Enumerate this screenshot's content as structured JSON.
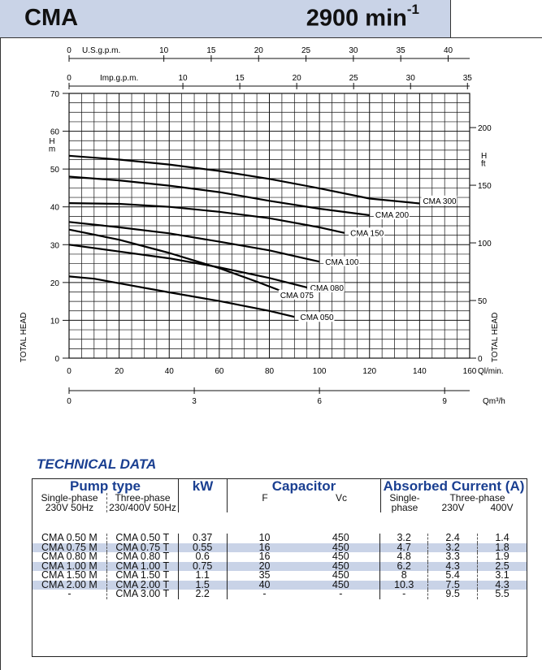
{
  "header": {
    "model": "CMA",
    "speed": "2900 min",
    "speed_exp": "-1"
  },
  "chart_data": {
    "type": "line",
    "xlabel": "Ql/min.",
    "ylabel_left": "TOTAL HEAD",
    "ylabel_right": "TOTAL HEAD",
    "ylabel_left_unit": [
      "H",
      "m"
    ],
    "ylabel_right_unit": [
      "H",
      "ft"
    ],
    "xlim": [
      0,
      160
    ],
    "ylim": [
      0,
      70
    ],
    "x_ticks": [
      0,
      20,
      40,
      60,
      80,
      100,
      120,
      140,
      160
    ],
    "y_ticks": [
      0,
      10,
      20,
      30,
      40,
      50,
      60,
      70
    ],
    "secondary_axes": {
      "usgpm": {
        "label": "U.S.g.p.m.",
        "ticks": [
          0,
          10,
          15,
          20,
          25,
          30,
          35,
          40
        ],
        "per_unit_lpm": 3.785
      },
      "impgpm": {
        "label": "Imp.g.p.m.",
        "ticks": [
          0,
          10,
          15,
          20,
          25,
          30,
          35
        ],
        "per_unit_lpm": 4.546
      },
      "m3h": {
        "label": "Qm³/h",
        "ticks": [
          0,
          3,
          6,
          9
        ],
        "per_unit_lpm": 16.6667
      },
      "ft": {
        "ticks": [
          0,
          50,
          100,
          150,
          200
        ],
        "per_unit_m": 0.3048
      }
    },
    "series": [
      {
        "name": "CMA 300",
        "x": [
          0,
          20,
          40,
          60,
          80,
          100,
          120,
          140
        ],
        "y": [
          53.5,
          52.5,
          51.2,
          49.5,
          47.4,
          44.9,
          42.2,
          40.9
        ]
      },
      {
        "name": "CMA 200",
        "x": [
          0,
          20,
          40,
          60,
          80,
          100,
          120
        ],
        "y": [
          48,
          47,
          45.6,
          43.9,
          41.6,
          39.5,
          37.8
        ]
      },
      {
        "name": "CMA 150",
        "x": [
          0,
          20,
          40,
          60,
          80,
          100,
          110
        ],
        "y": [
          41,
          40.8,
          40,
          38.7,
          37,
          34.6,
          33.1
        ]
      },
      {
        "name": "CMA 100",
        "x": [
          0,
          20,
          40,
          60,
          80,
          100
        ],
        "y": [
          36,
          34.6,
          33,
          30.8,
          28.5,
          25.5
        ]
      },
      {
        "name": "CMA 080",
        "x": [
          0,
          20,
          40,
          60,
          80,
          95
        ],
        "y": [
          30,
          28.2,
          26.4,
          24,
          21.2,
          18.7
        ]
      },
      {
        "name": "CMA 075",
        "x": [
          0,
          20,
          40,
          60,
          75,
          85
        ],
        "y": [
          34,
          31.3,
          27.8,
          23.8,
          20.2,
          17.7
        ]
      },
      {
        "name": "CMA 050",
        "x": [
          0,
          10,
          20,
          40,
          60,
          80,
          90
        ],
        "y": [
          21.6,
          21,
          19.8,
          17.4,
          15.1,
          12.5,
          10.9
        ]
      }
    ]
  },
  "tech": {
    "title": "TECHNICAL DATA",
    "h_pump": "Pump type",
    "h_kw": "kW",
    "h_cap": "Capacitor",
    "h_abs": "Absorbed Current (A)",
    "h_sp": "Single-phase",
    "h_sp2": "230V 50Hz",
    "h_tp": "Three-phase",
    "h_tp2": "230/400V 50Hz",
    "h_f": "F",
    "h_vc": "Vc",
    "h_abs_sp": "Single-",
    "h_abs_sp2": "phase",
    "h_abs_tp": "Three-phase",
    "h_230": "230V",
    "h_400": "400V",
    "rows": [
      [
        "CMA 0.50 M",
        "CMA 0.50 T",
        "0.37",
        "10",
        "450",
        "3.2",
        "2.4",
        "1.4"
      ],
      [
        "CMA 0.75 M",
        "CMA 0.75 T",
        "0.55",
        "16",
        "450",
        "4.7",
        "3.2",
        "1.8"
      ],
      [
        "CMA 0.80 M",
        "CMA 0.80 T",
        "0.6",
        "16",
        "450",
        "4.8",
        "3.3",
        "1.9"
      ],
      [
        "CMA 1.00 M",
        "CMA 1.00 T",
        "0.75",
        "20",
        "450",
        "6.2",
        "4.3",
        "2.5"
      ],
      [
        "CMA 1.50 M",
        "CMA 1.50 T",
        "1.1",
        "35",
        "450",
        "8",
        "5.4",
        "3.1"
      ],
      [
        "CMA 2.00 M",
        "CMA 2.00 T",
        "1.5",
        "40",
        "450",
        "10.3",
        "7.5",
        "4.3"
      ],
      [
        "-",
        "CMA 3.00 T",
        "2.2",
        "-",
        "-",
        "-",
        "9.5",
        "5.5"
      ]
    ]
  }
}
